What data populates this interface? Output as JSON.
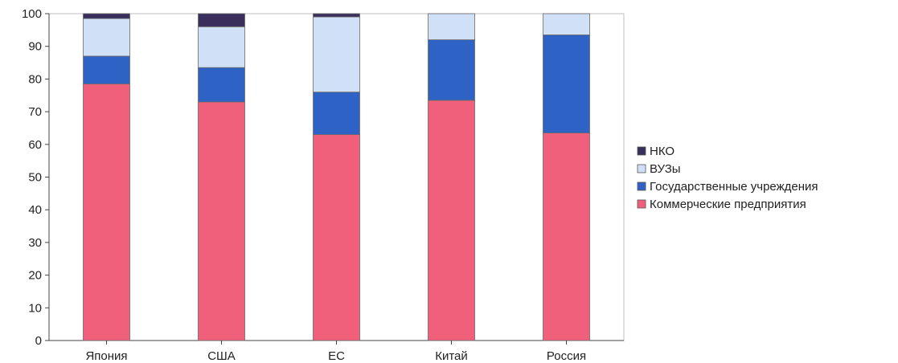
{
  "chart_data": {
    "type": "bar",
    "stacked": true,
    "categories": [
      "Япония",
      "США",
      "ЕС",
      "Китай",
      "Россия"
    ],
    "series": [
      {
        "name": "Коммерческие предприятия",
        "color": "#f0607a",
        "values": [
          78.5,
          73,
          63,
          73.5,
          63.5
        ]
      },
      {
        "name": "Государственные учреждения",
        "color": "#2e62c4",
        "values": [
          8.5,
          10.5,
          13,
          18.5,
          30
        ]
      },
      {
        "name": "ВУЗы",
        "color": "#cfe0f7",
        "values": [
          11.5,
          12.5,
          23,
          8,
          6.5
        ]
      },
      {
        "name": "НКО",
        "color": "#3a2f5c",
        "values": [
          1.5,
          4,
          1,
          0,
          0
        ]
      }
    ],
    "ylim": [
      0,
      100
    ],
    "yticks": [
      0,
      10,
      20,
      30,
      40,
      50,
      60,
      70,
      80,
      90,
      100
    ],
    "legend_position": "right",
    "legend_order": [
      "НКО",
      "ВУЗы",
      "Государственные учреждения",
      "Коммерческие предприятия"
    ],
    "grid": false
  }
}
